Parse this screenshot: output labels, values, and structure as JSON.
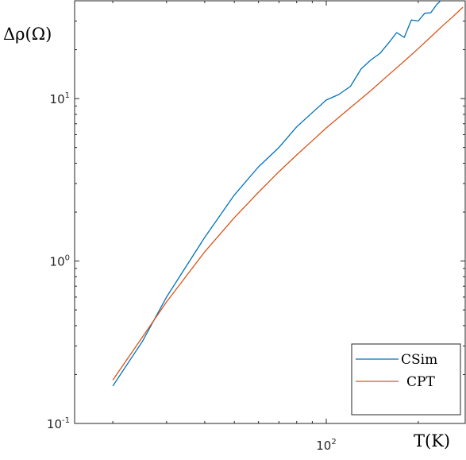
{
  "chart_data": {
    "type": "line",
    "xlabel": "T(K)",
    "ylabel": "Δρ(Ω)",
    "xscale": "log",
    "yscale": "log",
    "xlim": [
      15,
      285
    ],
    "ylim": [
      0.1,
      40
    ],
    "x_ticks": [
      {
        "base": "10",
        "exp": "2"
      }
    ],
    "y_ticks": [
      {
        "base": "10",
        "exp": "-1"
      },
      {
        "base": "10",
        "exp": "0"
      },
      {
        "base": "10",
        "exp": "1"
      }
    ],
    "grid": false,
    "legend_position": "bottom-right",
    "series": [
      {
        "name": "CSim",
        "color": "#0072BD",
        "x": [
          20,
          25,
          30,
          40,
          50,
          60,
          70,
          80,
          90,
          100,
          110,
          120,
          130,
          140,
          150,
          160,
          170,
          180,
          190,
          200,
          210,
          220,
          230,
          240
        ],
        "y": [
          0.17,
          0.32,
          0.6,
          1.4,
          2.55,
          3.8,
          5.0,
          6.7,
          8.2,
          9.8,
          10.6,
          11.9,
          15.2,
          17.3,
          19.0,
          22.0,
          25.5,
          23.8,
          30.5,
          30.0,
          33.5,
          33.8,
          38.0,
          41.0
        ]
      },
      {
        "name": "CPT",
        "color": "#D95319",
        "x": [
          20,
          25,
          30,
          40,
          50,
          60,
          70,
          80,
          90,
          100,
          120,
          140,
          160,
          180,
          200,
          220,
          240,
          260,
          280
        ],
        "y": [
          0.185,
          0.34,
          0.56,
          1.14,
          1.85,
          2.65,
          3.55,
          4.5,
          5.5,
          6.6,
          8.8,
          11.2,
          14.0,
          17.0,
          20.3,
          24.0,
          28.0,
          32.0,
          36.5
        ]
      }
    ]
  }
}
